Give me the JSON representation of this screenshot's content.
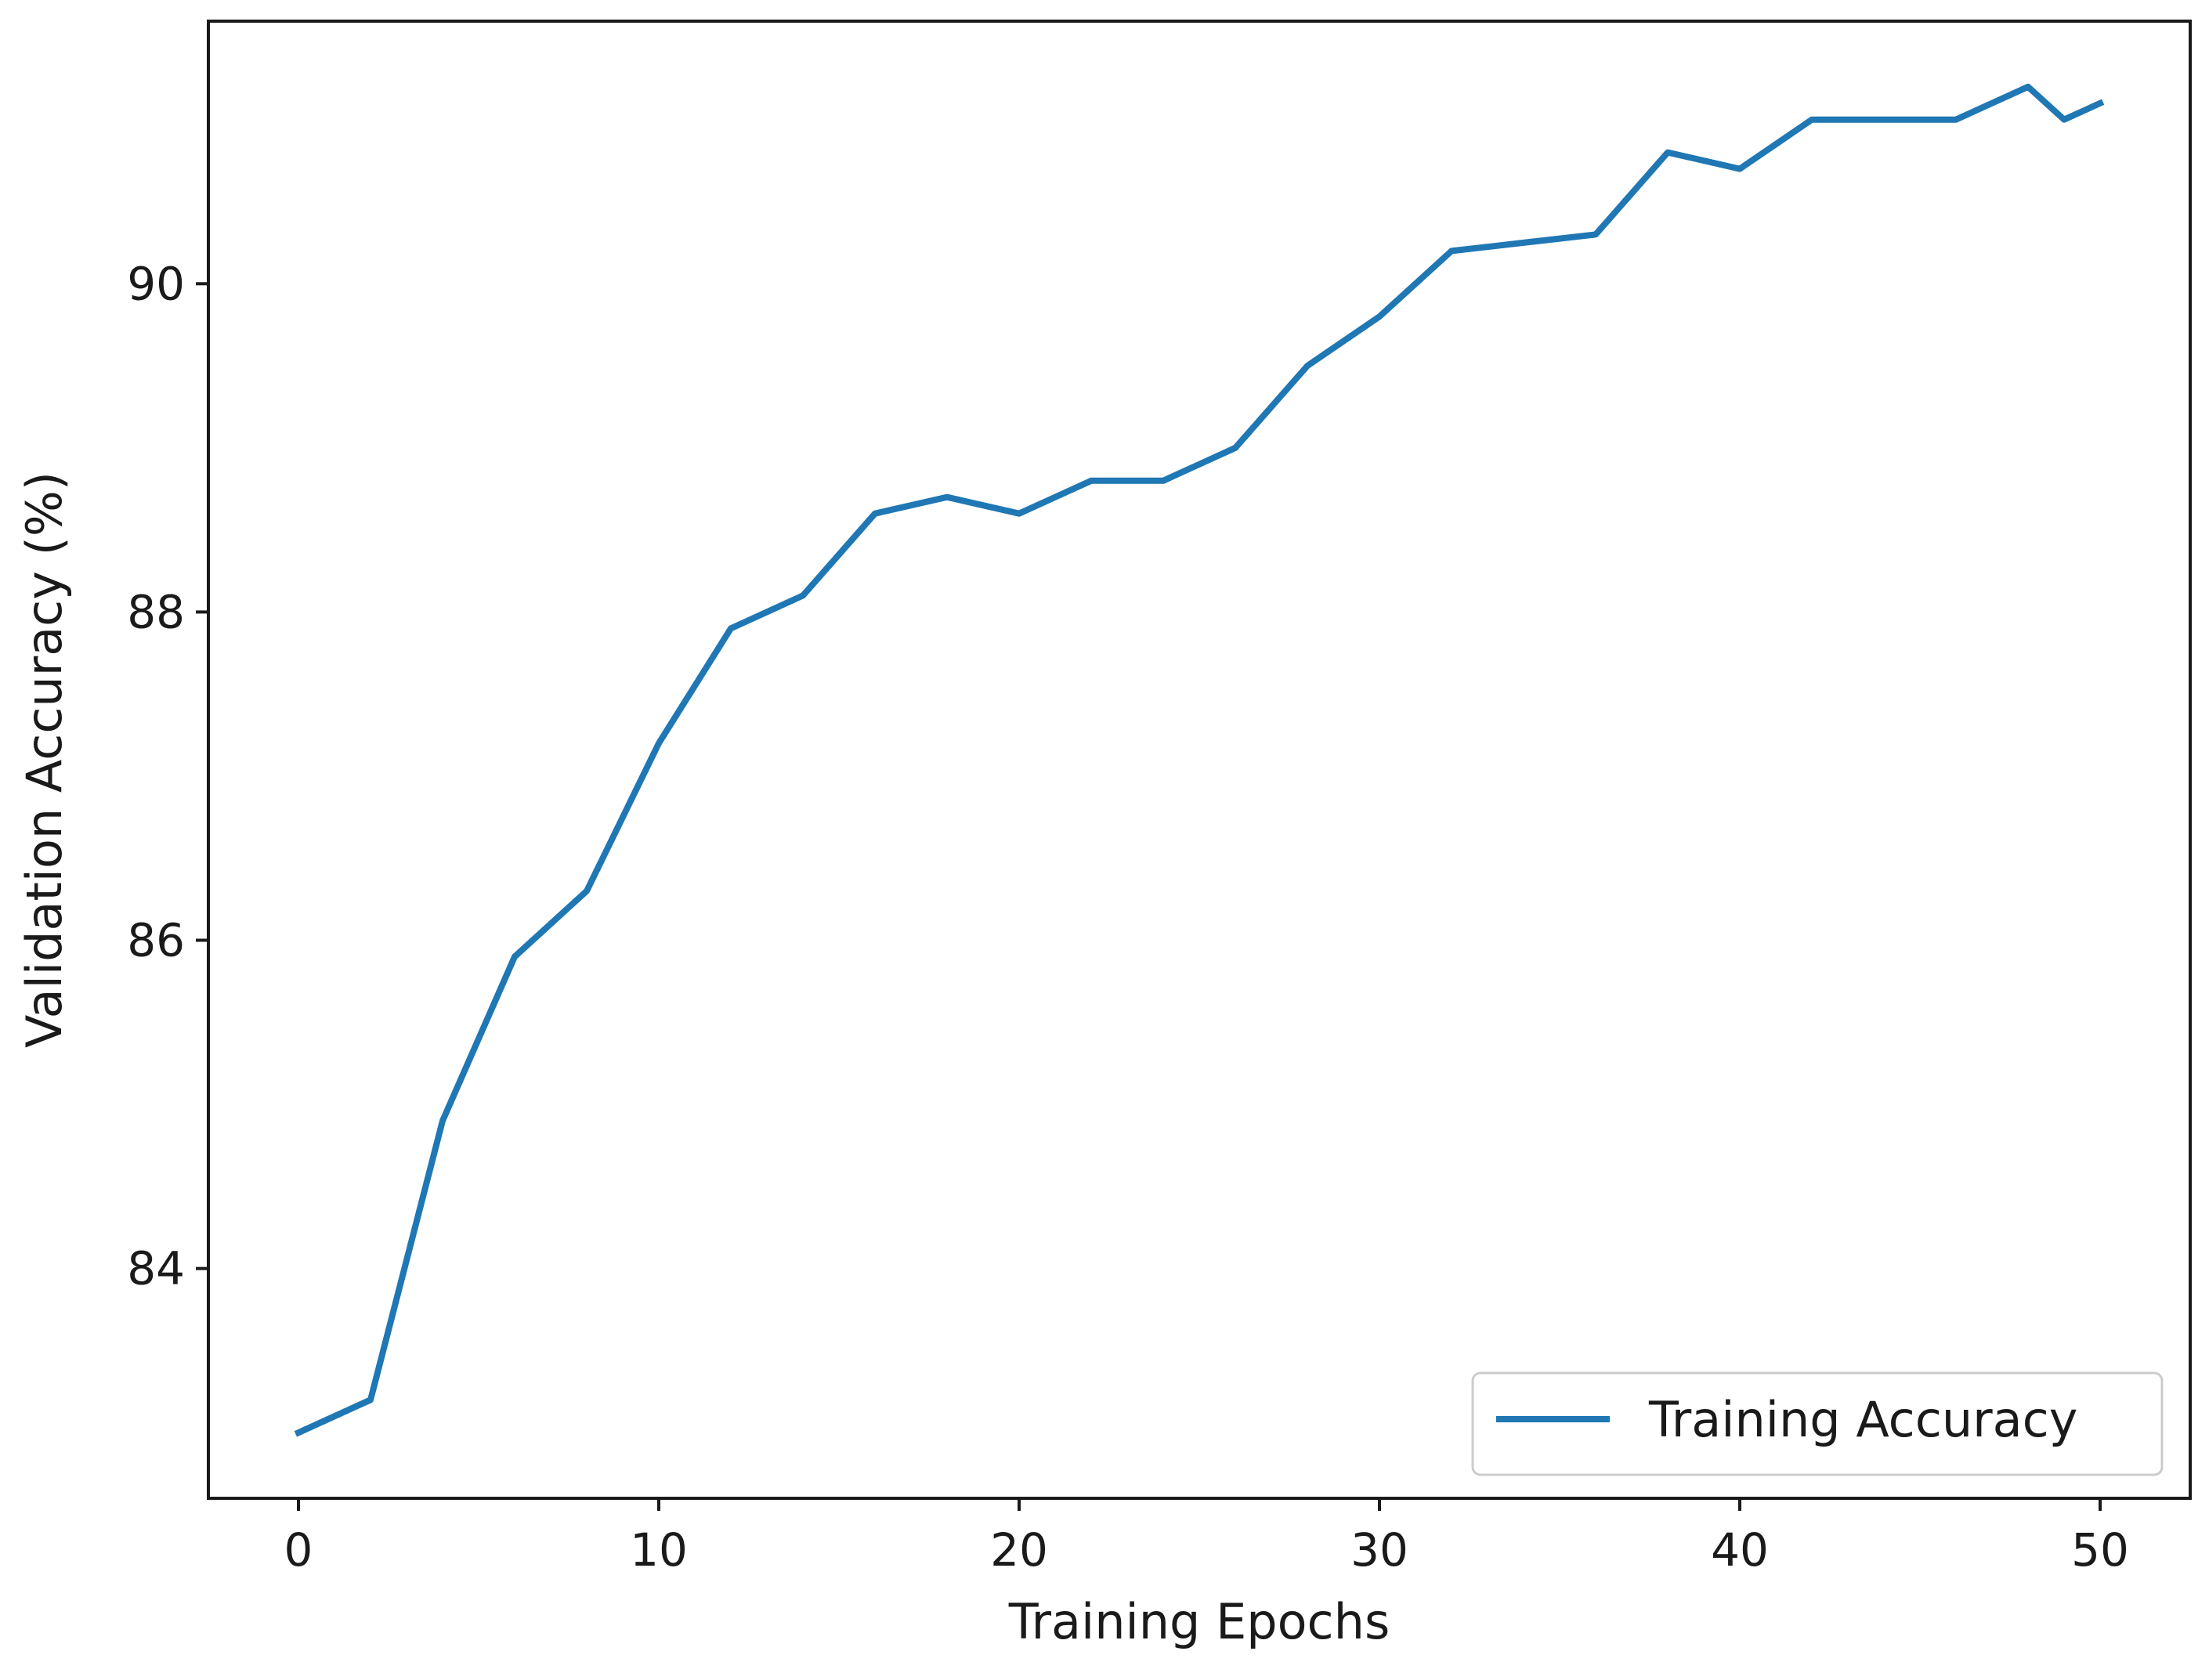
{
  "chart_data": {
    "type": "line",
    "title": "",
    "xlabel": "Training Epochs",
    "ylabel": "Validation Accuracy (%)",
    "xlim": [
      -2.5,
      52.5
    ],
    "ylim": [
      82.6,
      91.6
    ],
    "xticks": [
      0,
      10,
      20,
      30,
      40,
      50
    ],
    "yticks": [
      84,
      86,
      88,
      90
    ],
    "grid": false,
    "legend_position": "lower-right",
    "series": [
      {
        "name": "Training Accuracy",
        "color": "#1f77b4",
        "x": [
          0,
          2,
          4,
          6,
          8,
          10,
          12,
          14,
          16,
          18,
          20,
          22,
          24,
          26,
          28,
          30,
          32,
          34,
          36,
          38,
          40,
          42,
          44,
          46,
          48,
          49,
          50
        ],
        "y": [
          83.0,
          83.2,
          84.9,
          85.9,
          86.3,
          87.2,
          87.9,
          88.1,
          88.6,
          88.7,
          88.6,
          88.8,
          88.8,
          89.0,
          89.5,
          89.8,
          90.2,
          90.25,
          90.3,
          90.8,
          90.7,
          91.0,
          91.0,
          91.0,
          91.2,
          91.0,
          91.1
        ]
      }
    ]
  }
}
